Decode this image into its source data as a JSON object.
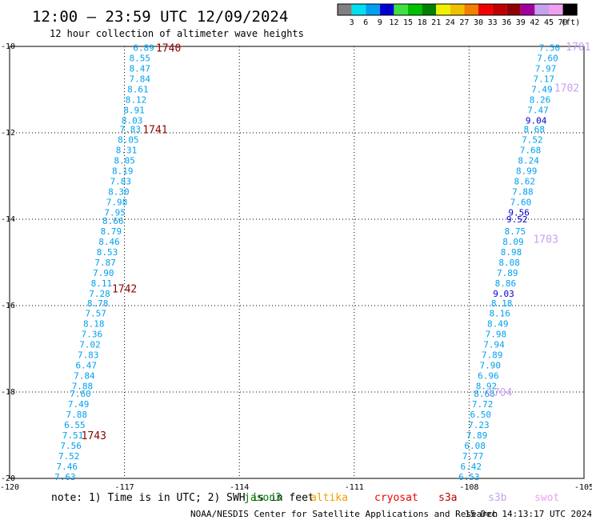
{
  "header": {
    "title": "12:00 — 23:59 UTC 12/09/2024",
    "subtitle": "12 hour collection of altimeter wave heights"
  },
  "legend": {
    "labels": [
      "3",
      "6",
      "9",
      "12",
      "15",
      "18",
      "21",
      "24",
      "27",
      "30",
      "33",
      "36",
      "39",
      "42",
      "45",
      "70",
      "(ft)"
    ],
    "colors": [
      "#808080",
      "#00e0f0",
      "#00a0f0",
      "#0000d0",
      "#40e040",
      "#00c000",
      "#008000",
      "#f0f000",
      "#f0c000",
      "#f08000",
      "#f00000",
      "#c00000",
      "#900000",
      "#a000a0",
      "#c8a0f0",
      "#f0a0f0",
      "#000000"
    ]
  },
  "footer": {
    "note_prefix": "note: 1) Time is in UTC; 2) SWH is in feet",
    "satellites": [
      {
        "name": "jason3",
        "color": "#008000"
      },
      {
        "name": "altika",
        "color": "#f0a000"
      },
      {
        "name": "cryosat",
        "color": "#f00000"
      },
      {
        "name": "s3a",
        "color": "#c00000"
      },
      {
        "name": "s3b",
        "color": "#c8a0f0"
      },
      {
        "name": "swot",
        "color": "#f0a0f0"
      }
    ],
    "credit": "NOAA/NESDIS Center for Satellite Applications and Research",
    "timestamp": "15 Dec 14:13:17 UTC 2024"
  },
  "chart_data": {
    "type": "scatter",
    "title": "12:00 — 23:59 UTC 12/09/2024",
    "subtitle": "12 hour collection of altimeter wave heights",
    "xlim": [
      -120,
      -105
    ],
    "ylim": [
      -20,
      -10
    ],
    "x_ticks": [
      "-120",
      "-117",
      "-114",
      "-111",
      "-108",
      "-105"
    ],
    "y_ticks": [
      "-10",
      "-12",
      "-14",
      "-16",
      "-18",
      "-20"
    ],
    "grid": true,
    "units": "(ft)",
    "series": [
      {
        "track": "west",
        "color": "#00a0f0",
        "points": [
          {
            "lon": -116.5,
            "lat": -10.03,
            "value": "6.89"
          },
          {
            "lon": -116.6,
            "lat": -10.27,
            "value": "8.55"
          },
          {
            "lon": -116.6,
            "lat": -10.51,
            "value": "8.47"
          },
          {
            "lon": -116.6,
            "lat": -10.75,
            "value": "7.84"
          },
          {
            "lon": -116.65,
            "lat": -10.99,
            "value": "8.61"
          },
          {
            "lon": -116.7,
            "lat": -11.23,
            "value": "8.12"
          },
          {
            "lon": -116.75,
            "lat": -11.47,
            "value": "8.91"
          },
          {
            "lon": -116.8,
            "lat": -11.71,
            "value": "8.03"
          },
          {
            "lon": -116.85,
            "lat": -11.92,
            "value": "7.83"
          },
          {
            "lon": -116.9,
            "lat": -12.16,
            "value": "8.05"
          },
          {
            "lon": -116.95,
            "lat": -12.4,
            "value": "8.31"
          },
          {
            "lon": -117.0,
            "lat": -12.64,
            "value": "8.05"
          },
          {
            "lon": -117.05,
            "lat": -12.88,
            "value": "8.19"
          },
          {
            "lon": -117.1,
            "lat": -13.12,
            "value": "7.83"
          },
          {
            "lon": -117.15,
            "lat": -13.36,
            "value": "8.30"
          },
          {
            "lon": -117.2,
            "lat": -13.6,
            "value": "7.98"
          },
          {
            "lon": -117.25,
            "lat": -13.84,
            "value": "7.95"
          },
          {
            "lon": -117.3,
            "lat": -14.04,
            "value": "8.66"
          },
          {
            "lon": -117.35,
            "lat": -14.28,
            "value": "8.79"
          },
          {
            "lon": -117.4,
            "lat": -14.52,
            "value": "8.46"
          },
          {
            "lon": -117.45,
            "lat": -14.76,
            "value": "8.53"
          },
          {
            "lon": -117.5,
            "lat": -15.0,
            "value": "7.87"
          },
          {
            "lon": -117.55,
            "lat": -15.24,
            "value": "7.90"
          },
          {
            "lon": -117.6,
            "lat": -15.48,
            "value": "8.11"
          },
          {
            "lon": -117.65,
            "lat": -15.72,
            "value": "7.28"
          },
          {
            "lon": -117.7,
            "lat": -15.94,
            "value": "8.78"
          },
          {
            "lon": -117.75,
            "lat": -16.18,
            "value": "7.57"
          },
          {
            "lon": -117.8,
            "lat": -16.42,
            "value": "8.18"
          },
          {
            "lon": -117.85,
            "lat": -16.66,
            "value": "7.36"
          },
          {
            "lon": -117.9,
            "lat": -16.9,
            "value": "7.02"
          },
          {
            "lon": -117.95,
            "lat": -17.14,
            "value": "7.83"
          },
          {
            "lon": -118.0,
            "lat": -17.38,
            "value": "6.47"
          },
          {
            "lon": -118.05,
            "lat": -17.62,
            "value": "7.84"
          },
          {
            "lon": -118.1,
            "lat": -17.86,
            "value": "7.88"
          },
          {
            "lon": -118.15,
            "lat": -18.04,
            "value": "7.60"
          },
          {
            "lon": -118.2,
            "lat": -18.28,
            "value": "7.49"
          },
          {
            "lon": -118.25,
            "lat": -18.52,
            "value": "7.88"
          },
          {
            "lon": -118.3,
            "lat": -18.76,
            "value": "6.55"
          },
          {
            "lon": -118.35,
            "lat": -19.0,
            "value": "7.51"
          },
          {
            "lon": -118.4,
            "lat": -19.24,
            "value": "7.56"
          },
          {
            "lon": -118.45,
            "lat": -19.48,
            "value": "7.52"
          },
          {
            "lon": -118.5,
            "lat": -19.72,
            "value": "7.46"
          },
          {
            "lon": -118.55,
            "lat": -19.96,
            "value": "7.63"
          }
        ]
      },
      {
        "track": "east",
        "color": "#00a0f0",
        "points": [
          {
            "lon": -105.9,
            "lat": -10.03,
            "value": "7.50"
          },
          {
            "lon": -105.95,
            "lat": -10.27,
            "value": "7.60"
          },
          {
            "lon": -106.0,
            "lat": -10.51,
            "value": "7.97"
          },
          {
            "lon": -106.05,
            "lat": -10.75,
            "value": "7.17"
          },
          {
            "lon": -106.1,
            "lat": -10.99,
            "value": "7.49"
          },
          {
            "lon": -106.15,
            "lat": -11.23,
            "value": "8.26"
          },
          {
            "lon": -106.2,
            "lat": -11.47,
            "value": "7.47"
          },
          {
            "lon": -106.25,
            "lat": -11.71,
            "value": "9.04",
            "color": "#0000d0"
          },
          {
            "lon": -106.3,
            "lat": -11.92,
            "value": "8.68"
          },
          {
            "lon": -106.35,
            "lat": -12.16,
            "value": "7.52"
          },
          {
            "lon": -106.4,
            "lat": -12.4,
            "value": "7.68"
          },
          {
            "lon": -106.45,
            "lat": -12.64,
            "value": "8.24"
          },
          {
            "lon": -106.5,
            "lat": -12.88,
            "value": "8.99"
          },
          {
            "lon": -106.55,
            "lat": -13.12,
            "value": "8.62"
          },
          {
            "lon": -106.6,
            "lat": -13.36,
            "value": "7.88"
          },
          {
            "lon": -106.65,
            "lat": -13.6,
            "value": "7.60"
          },
          {
            "lon": -106.7,
            "lat": -13.84,
            "value": "9.56",
            "color": "#0000d0"
          },
          {
            "lon": -106.75,
            "lat": -14.0,
            "value": "9.52",
            "color": "#0000d0"
          },
          {
            "lon": -106.8,
            "lat": -14.28,
            "value": "8.75"
          },
          {
            "lon": -106.85,
            "lat": -14.52,
            "value": "8.09"
          },
          {
            "lon": -106.9,
            "lat": -14.76,
            "value": "8.98"
          },
          {
            "lon": -106.95,
            "lat": -15.0,
            "value": "8.08"
          },
          {
            "lon": -107.0,
            "lat": -15.24,
            "value": "7.89"
          },
          {
            "lon": -107.05,
            "lat": -15.48,
            "value": "8.86"
          },
          {
            "lon": -107.1,
            "lat": -15.72,
            "value": "9.03",
            "color": "#0000d0"
          },
          {
            "lon": -107.15,
            "lat": -15.94,
            "value": "8.18"
          },
          {
            "lon": -107.2,
            "lat": -16.18,
            "value": "8.16"
          },
          {
            "lon": -107.25,
            "lat": -16.42,
            "value": "8.49"
          },
          {
            "lon": -107.3,
            "lat": -16.66,
            "value": "7.98"
          },
          {
            "lon": -107.35,
            "lat": -16.9,
            "value": "7.94"
          },
          {
            "lon": -107.4,
            "lat": -17.14,
            "value": "7.89"
          },
          {
            "lon": -107.45,
            "lat": -17.38,
            "value": "7.90"
          },
          {
            "lon": -107.5,
            "lat": -17.62,
            "value": "6.96"
          },
          {
            "lon": -107.55,
            "lat": -17.86,
            "value": "8.92"
          },
          {
            "lon": -107.6,
            "lat": -18.04,
            "value": "8.66"
          },
          {
            "lon": -107.65,
            "lat": -18.28,
            "value": "7.72"
          },
          {
            "lon": -107.7,
            "lat": -18.52,
            "value": "6.50"
          },
          {
            "lon": -107.75,
            "lat": -18.76,
            "value": "7.23"
          },
          {
            "lon": -107.8,
            "lat": -19.0,
            "value": "7.89"
          },
          {
            "lon": -107.85,
            "lat": -19.24,
            "value": "6.08"
          },
          {
            "lon": -107.9,
            "lat": -19.48,
            "value": "7.77"
          },
          {
            "lon": -107.95,
            "lat": -19.72,
            "value": "6.42"
          },
          {
            "lon": -108.0,
            "lat": -19.96,
            "value": "6.53"
          }
        ]
      }
    ],
    "time_labels": [
      {
        "label": "1740",
        "lon": -115.85,
        "lat": -10.03,
        "color": "#900000"
      },
      {
        "label": "1741",
        "lon": -116.2,
        "lat": -11.92,
        "color": "#900000"
      },
      {
        "label": "1742",
        "lon": -117.0,
        "lat": -15.6,
        "color": "#900000"
      },
      {
        "label": "1743",
        "lon": -117.8,
        "lat": -19.0,
        "color": "#900000"
      },
      {
        "label": "1701",
        "lon": -105.15,
        "lat": -10.0,
        "color": "#c8a0f0"
      },
      {
        "label": "1702",
        "lon": -105.45,
        "lat": -10.95,
        "color": "#c8a0f0"
      },
      {
        "label": "1703",
        "lon": -106.0,
        "lat": -14.45,
        "color": "#c8a0f0"
      },
      {
        "label": "1704",
        "lon": -107.2,
        "lat": -18.0,
        "color": "#c8a0f0"
      }
    ]
  }
}
